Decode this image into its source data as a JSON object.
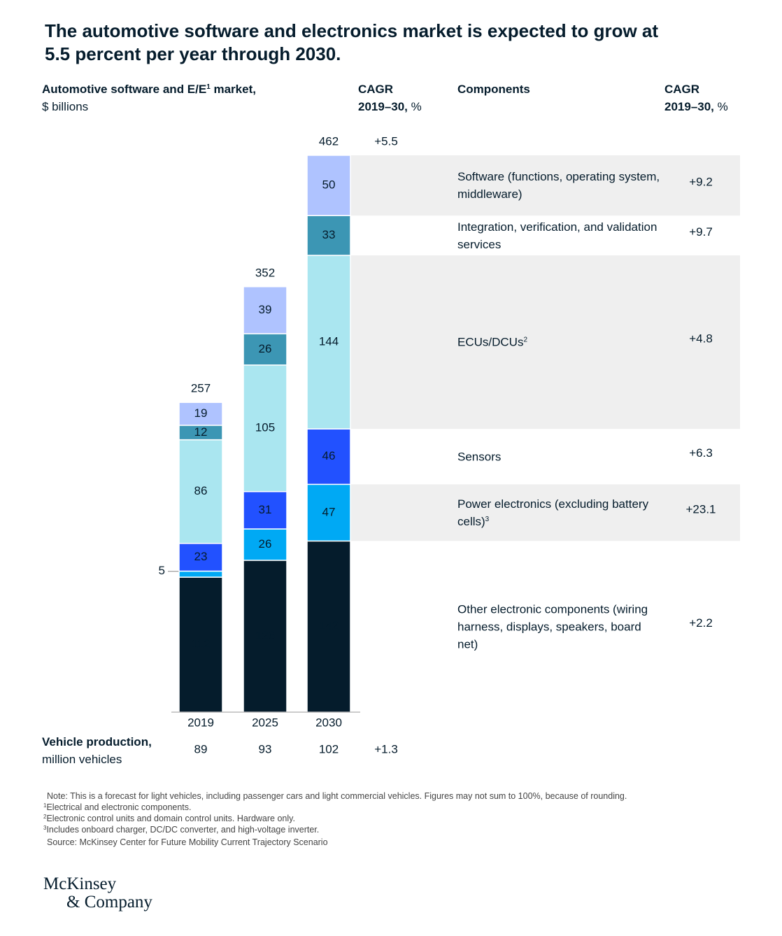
{
  "title": "The automotive software and electronics market is expected to grow at 5.5 percent per year through 2030.",
  "chart_data": {
    "type": "bar",
    "stacked": true,
    "ylabel": {
      "before": "Automotive software and E/E",
      "note": "1",
      "after": " market,"
    },
    "yunit": "$ billions",
    "cagr_header": {
      "title": "CAGR",
      "period": "2019–30,",
      "unit": "%"
    },
    "components_header": "Components",
    "categories": [
      "2019",
      "2025",
      "2030"
    ],
    "totals": [
      257,
      352,
      462
    ],
    "total_cagr": 5.5,
    "total_cagr_label": "+5.5",
    "series": [
      {
        "name": "Other electronic components (wiring harness, displays, speakers, board net)",
        "color": "#051c2c",
        "values": [
          112,
          126,
          142
        ],
        "cagr": 2.2,
        "cagr_label": "+2.2"
      },
      {
        "name": "Power electronics (excluding battery cells)",
        "note": "3",
        "color": "#00a9f4",
        "values": [
          5,
          26,
          47
        ],
        "cagr": 23.1,
        "cagr_label": "+23.1"
      },
      {
        "name": "Sensors",
        "color": "#2251ff",
        "values": [
          23,
          31,
          46
        ],
        "cagr": 6.3,
        "cagr_label": "+6.3"
      },
      {
        "name": "ECUs/DCUs",
        "note": "2",
        "color": "#aae6f0",
        "values": [
          86,
          105,
          144
        ],
        "cagr": 4.8,
        "cagr_label": "+4.8"
      },
      {
        "name": "Integration, verification, and validation services",
        "color": "#3c96b4",
        "values": [
          12,
          26,
          33
        ],
        "cagr": 9.7,
        "cagr_label": "+9.7"
      },
      {
        "name": "Software (functions, operating system, middleware)",
        "color": "#afc3ff",
        "values": [
          19,
          39,
          50
        ],
        "cagr": 9.2,
        "cagr_label": "+9.2"
      }
    ],
    "production": {
      "label": "Vehicle production,",
      "unit": "million vehicles",
      "values": [
        89,
        93,
        102
      ],
      "cagr": 1.3,
      "cagr_label": "+1.3"
    }
  },
  "notes": {
    "note": "Note: This is a forecast for light vehicles, including passenger cars and light commercial vehicles. Figures may not sum to 100%, because of rounding.",
    "refs": [
      {
        "marker": "1",
        "text": "Electrical and electronic components."
      },
      {
        "marker": "2",
        "text": "Electronic control units and domain control units. Hardware only."
      },
      {
        "marker": "3",
        "text": "Includes onboard charger, DC/DC converter, and high-voltage inverter."
      }
    ],
    "source": "Source: McKinsey Center for Future Mobility Current Trajectory Scenario"
  },
  "logo": [
    "McKinsey",
    "& Company"
  ]
}
